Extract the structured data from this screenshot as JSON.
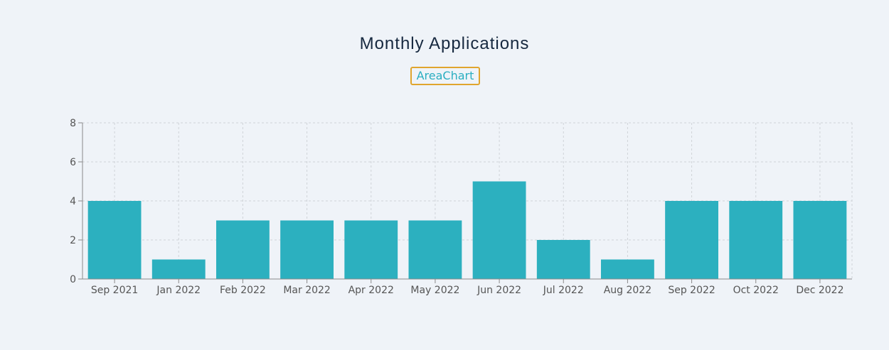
{
  "header": {
    "title": "Monthly Applications",
    "chart_type_button": "AreaChart"
  },
  "colors": {
    "bar": "#2cb0bf",
    "title": "#16283f",
    "button_border": "#e0a52e",
    "button_text": "#2aaec0",
    "grid": "#cfd3d8",
    "axis": "#8a8a8a",
    "background": "#eff3f8"
  },
  "chart_data": {
    "type": "bar",
    "title": "Monthly Applications",
    "xlabel": "",
    "ylabel": "",
    "categories": [
      "Sep 2021",
      "Jan 2022",
      "Feb 2022",
      "Mar 2022",
      "Apr 2022",
      "May 2022",
      "Jun 2022",
      "Jul 2022",
      "Aug 2022",
      "Sep 2022",
      "Oct 2022",
      "Dec 2022"
    ],
    "values": [
      4,
      1,
      3,
      3,
      3,
      3,
      5,
      2,
      1,
      4,
      4,
      4
    ],
    "ylim": [
      0,
      8
    ],
    "yticks": [
      0,
      2,
      4,
      6,
      8
    ],
    "grid": true,
    "grid_style": "dashed",
    "legend": false
  }
}
